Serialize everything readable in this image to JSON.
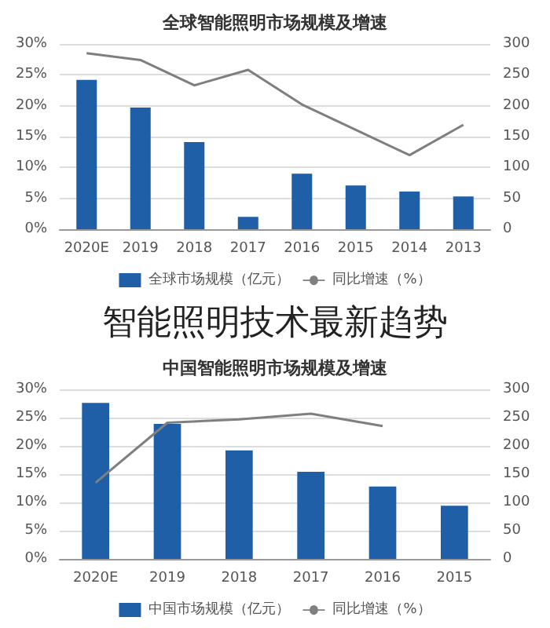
{
  "chart_data": [
    {
      "type": "bar",
      "title": "全球智能照明市场规模及增速",
      "categories": [
        "2020E",
        "2019",
        "2018",
        "2017",
        "2016",
        "2015",
        "2014",
        "2013"
      ],
      "series": [
        {
          "name": "全球市场规模（亿元）",
          "axis": "y2",
          "color": "#1f5fa8",
          "values": [
            242,
            197,
            141,
            20,
            90,
            71,
            61,
            53
          ]
        },
        {
          "name": "同比增速（%）",
          "type": "line",
          "axis": "y",
          "color": "#7f7f7f",
          "values": [
            28.5,
            27.4,
            23.3,
            25.8,
            20.2,
            16.1,
            12.0,
            16.9
          ]
        }
      ],
      "ylim": [
        0,
        30
      ],
      "yticks": [
        {
          "value": 0,
          "label": "0%"
        },
        {
          "value": 5,
          "label": "5%"
        },
        {
          "value": 10,
          "label": "10%"
        },
        {
          "value": 15,
          "label": "15%"
        },
        {
          "value": 20,
          "label": "20%"
        },
        {
          "value": 25,
          "label": "25%"
        },
        {
          "value": 30,
          "label": "30%"
        }
      ],
      "y2lim": [
        0,
        300
      ],
      "y2ticks": [
        0,
        50,
        100,
        150,
        200,
        250,
        300
      ],
      "grid": "y",
      "legend": "bottom",
      "marker": "none"
    },
    {
      "type": "bar",
      "title": "中国智能照明市场规模及增速",
      "annotations": [
        "智能照明技术最新趋势"
      ],
      "categories": [
        "2020E",
        "2019",
        "2018",
        "2017",
        "2016",
        "2015"
      ],
      "series": [
        {
          "name": "中国市场规模（亿元）",
          "axis": "y2",
          "color": "#1f5fa8",
          "values": [
            276,
            239,
            192,
            154,
            128,
            94
          ]
        },
        {
          "name": "同比增速（%）",
          "type": "line",
          "axis": "y",
          "color": "#7f7f7f",
          "values": [
            13.5,
            24.1,
            24.7,
            25.7,
            23.5,
            null
          ]
        }
      ],
      "ylim": [
        0,
        30
      ],
      "yticks": [
        {
          "value": 0,
          "label": "0%"
        },
        {
          "value": 5,
          "label": "5%"
        },
        {
          "value": 10,
          "label": "10%"
        },
        {
          "value": 15,
          "label": "15%"
        },
        {
          "value": 20,
          "label": "20%"
        },
        {
          "value": 25,
          "label": "25%"
        },
        {
          "value": 30,
          "label": "30%"
        }
      ],
      "y2lim": [
        0,
        300
      ],
      "y2ticks": [
        0,
        50,
        100,
        150,
        200,
        250,
        300
      ],
      "grid": "y",
      "legend": "bottom",
      "marker": "none"
    }
  ]
}
